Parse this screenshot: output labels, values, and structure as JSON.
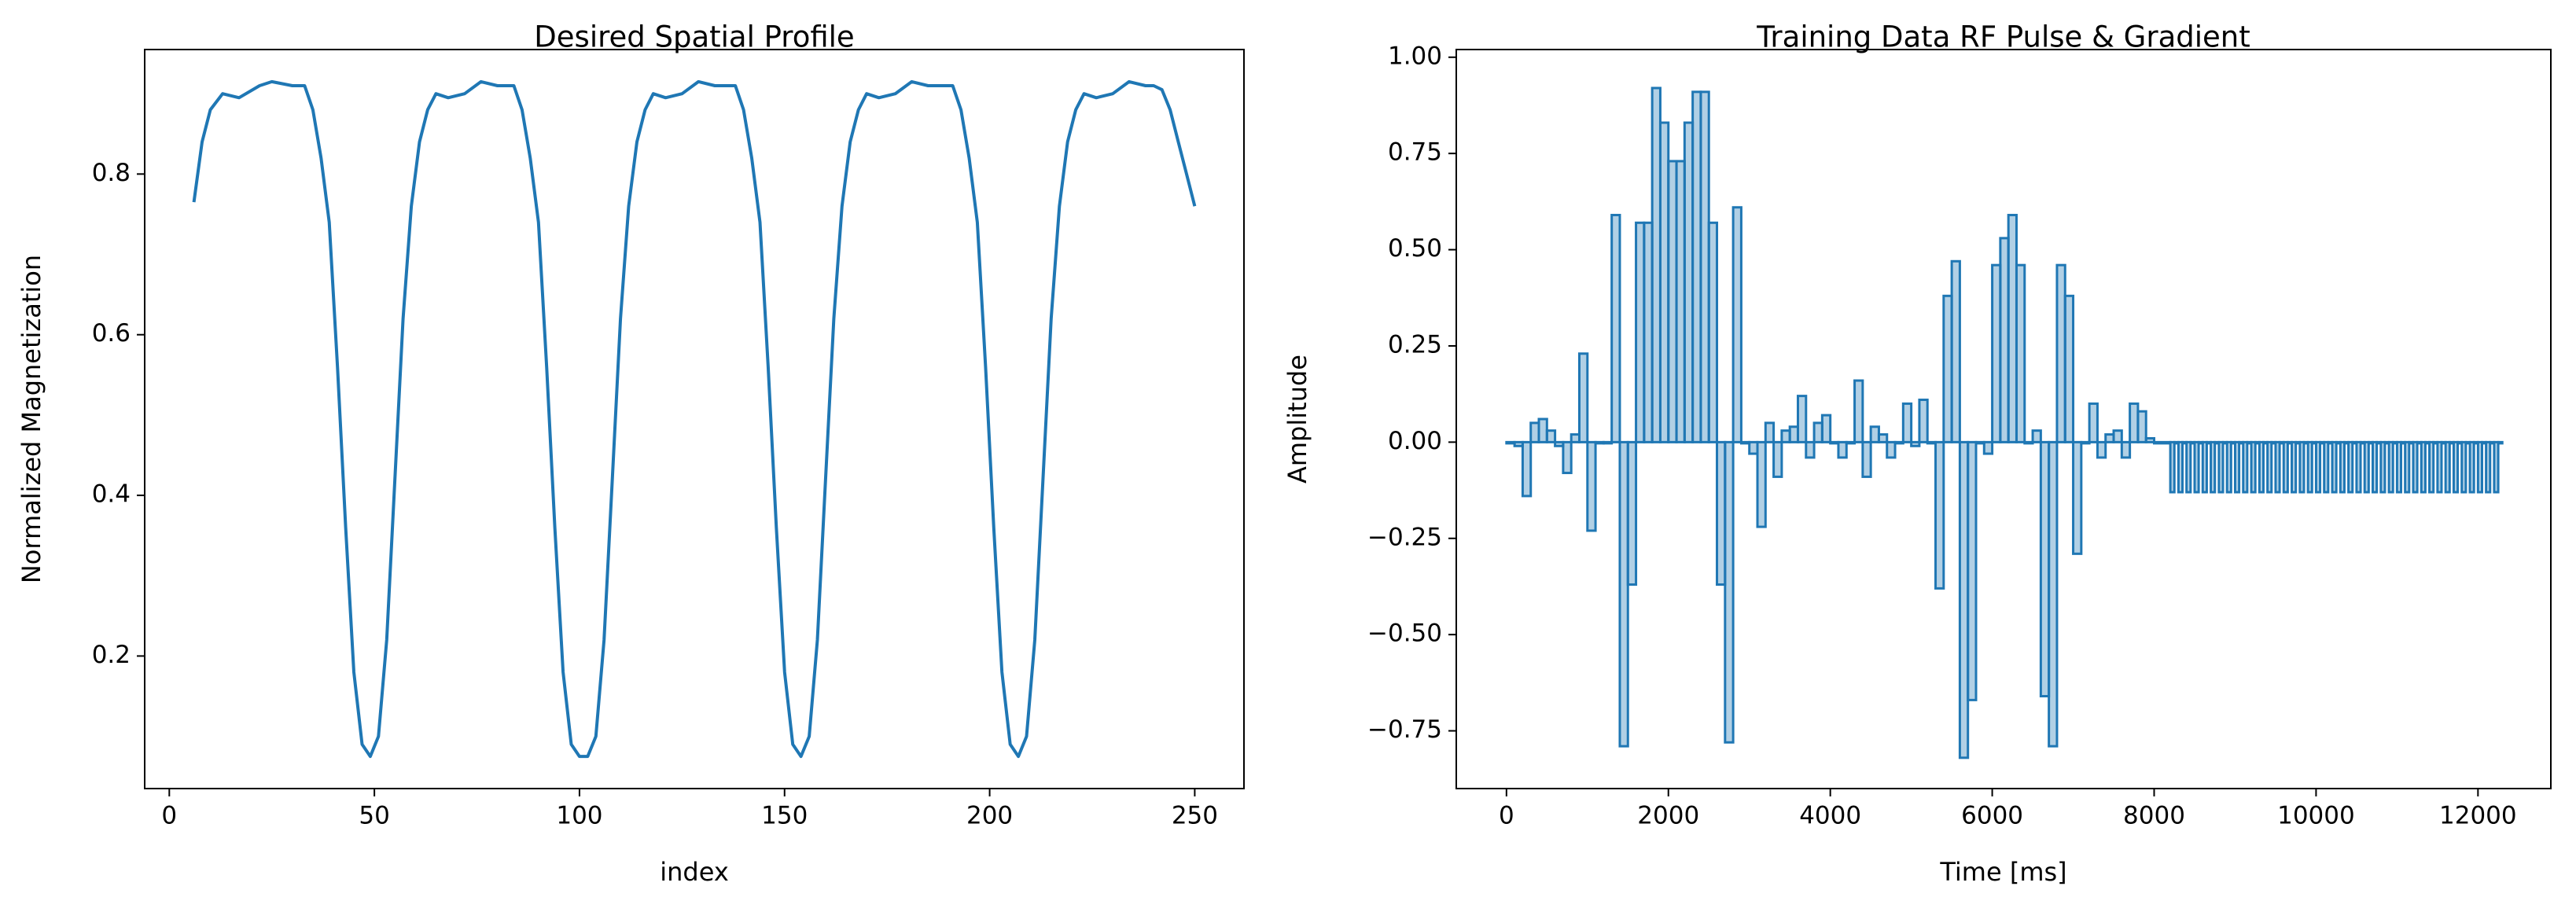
{
  "chart_data": [
    {
      "type": "line",
      "title": "Desired Spatial Profile",
      "xlabel": "index",
      "ylabel": "Normalized Magnetization",
      "color": "#1f77b4",
      "x": [
        6,
        8,
        10,
        13,
        17,
        22,
        25,
        30,
        33,
        35,
        37,
        39,
        41,
        43,
        45,
        47,
        49,
        51,
        53,
        55,
        57,
        59,
        61,
        63,
        65,
        68,
        72,
        76,
        80,
        84,
        86,
        88,
        90,
        92,
        94,
        96,
        98,
        100,
        102,
        104,
        106,
        108,
        110,
        112,
        114,
        116,
        118,
        121,
        125,
        129,
        133,
        138,
        140,
        142,
        144,
        146,
        148,
        150,
        152,
        154,
        156,
        158,
        160,
        162,
        164,
        166,
        168,
        170,
        173,
        177,
        181,
        185,
        191,
        193,
        195,
        197,
        199,
        201,
        203,
        205,
        207,
        209,
        211,
        213,
        215,
        217,
        219,
        221,
        223,
        226,
        230,
        234,
        238,
        240,
        242,
        244,
        246,
        248,
        250
      ],
      "values": [
        0.765,
        0.84,
        0.88,
        0.9,
        0.895,
        0.91,
        0.915,
        0.91,
        0.91,
        0.88,
        0.82,
        0.74,
        0.56,
        0.36,
        0.18,
        0.09,
        0.075,
        0.1,
        0.22,
        0.42,
        0.62,
        0.76,
        0.84,
        0.88,
        0.9,
        0.895,
        0.9,
        0.915,
        0.91,
        0.91,
        0.88,
        0.82,
        0.74,
        0.56,
        0.36,
        0.18,
        0.09,
        0.075,
        0.075,
        0.1,
        0.22,
        0.42,
        0.62,
        0.76,
        0.84,
        0.88,
        0.9,
        0.895,
        0.9,
        0.915,
        0.91,
        0.91,
        0.88,
        0.82,
        0.74,
        0.56,
        0.36,
        0.18,
        0.09,
        0.075,
        0.1,
        0.22,
        0.42,
        0.62,
        0.76,
        0.84,
        0.88,
        0.9,
        0.895,
        0.9,
        0.915,
        0.91,
        0.91,
        0.88,
        0.82,
        0.74,
        0.56,
        0.36,
        0.18,
        0.09,
        0.075,
        0.1,
        0.22,
        0.42,
        0.62,
        0.76,
        0.84,
        0.88,
        0.9,
        0.895,
        0.9,
        0.915,
        0.91,
        0.91,
        0.905,
        0.88,
        0.84,
        0.8,
        0.76
      ],
      "xlim": [
        -6,
        262
      ],
      "ylim": [
        0.035,
        0.955
      ],
      "xticks": [
        0,
        50,
        100,
        150,
        200,
        250
      ],
      "yticks": [
        0.2,
        0.4,
        0.6,
        0.8
      ]
    },
    {
      "type": "step",
      "title": "Training Data RF Pulse & Gradient",
      "xlabel": "Time [ms]",
      "ylabel": "Amplitude",
      "color": "#1f77b4",
      "x": [
        0,
        100,
        200,
        300,
        400,
        500,
        600,
        700,
        800,
        900,
        1000,
        1100,
        1200,
        1300,
        1400,
        1500,
        1600,
        1700,
        1800,
        1900,
        2000,
        2100,
        2200,
        2300,
        2400,
        2500,
        2600,
        2700,
        2800,
        2900,
        3000,
        3100,
        3200,
        3300,
        3400,
        3500,
        3600,
        3700,
        3800,
        3900,
        4000,
        4100,
        4200,
        4300,
        4400,
        4500,
        4600,
        4700,
        4800,
        4900,
        5000,
        5100,
        5200,
        5300,
        5400,
        5500,
        5600,
        5700,
        5800,
        5900,
        6000,
        6100,
        6200,
        6300,
        6400,
        6500,
        6600,
        6700,
        6800,
        6900,
        7000,
        7100,
        7200,
        7300,
        7400,
        7500,
        7600,
        7700,
        7800,
        7900,
        8000,
        8200,
        8250,
        8300,
        8350,
        8400,
        8450,
        8500,
        8550,
        8600,
        8650,
        8700,
        8750,
        8800,
        8850,
        8900,
        8950,
        9000,
        9050,
        9100,
        9150,
        9200,
        9250,
        9300,
        9350,
        9400,
        9450,
        9500,
        9550,
        9600,
        9650,
        9700,
        9750,
        9800,
        9850,
        9900,
        9950,
        10000,
        10050,
        10100,
        10150,
        10200,
        10250,
        10300,
        10350,
        10400,
        10450,
        10500,
        10550,
        10600,
        10650,
        10700,
        10750,
        10800,
        10850,
        10900,
        10950,
        11000,
        11050,
        11100,
        11150,
        11200,
        11250,
        11300,
        11350,
        11400,
        11450,
        11500,
        11550,
        11600,
        11650,
        11700,
        11750,
        11800,
        11850,
        11900,
        11950,
        12000,
        12050,
        12100,
        12150,
        12200,
        12250
      ],
      "values": [
        0.0,
        -0.01,
        -0.14,
        0.05,
        0.06,
        0.03,
        -0.01,
        -0.08,
        0.02,
        0.23,
        -0.23,
        0.0,
        0.0,
        0.59,
        -0.79,
        -0.37,
        0.57,
        0.57,
        0.92,
        0.83,
        0.73,
        0.73,
        0.83,
        0.91,
        0.91,
        0.57,
        -0.37,
        -0.78,
        0.61,
        0.0,
        -0.03,
        -0.22,
        0.05,
        -0.09,
        0.03,
        0.04,
        0.12,
        -0.04,
        0.05,
        0.07,
        0.0,
        -0.04,
        0.0,
        0.16,
        -0.09,
        0.04,
        0.02,
        -0.04,
        0.0,
        0.1,
        -0.01,
        0.11,
        0.0,
        -0.38,
        0.38,
        0.47,
        -0.82,
        -0.67,
        0.0,
        -0.03,
        0.46,
        0.53,
        0.59,
        0.46,
        0.0,
        0.03,
        -0.66,
        -0.79,
        0.46,
        0.38,
        -0.29,
        0.0,
        0.1,
        -0.04,
        0.02,
        0.03,
        -0.04,
        0.1,
        0.08,
        0.01,
        0.0,
        -0.13,
        0.0,
        -0.13,
        0.0,
        -0.13,
        0.0,
        -0.13,
        0.0,
        -0.13,
        0.0,
        -0.13,
        0.0,
        -0.13,
        0.0,
        -0.13,
        0.0,
        -0.13,
        0.0,
        -0.13,
        0.0,
        -0.13,
        0.0,
        -0.13,
        0.0,
        -0.13,
        0.0,
        -0.13,
        0.0,
        -0.13,
        0.0,
        -0.13,
        0.0,
        -0.13,
        0.0,
        -0.13,
        0.0,
        -0.13,
        0.0,
        -0.13,
        0.0,
        -0.13,
        0.0,
        -0.13,
        0.0,
        -0.13,
        0.0,
        -0.13,
        0.0,
        -0.13,
        0.0,
        -0.13,
        0.0,
        -0.13,
        0.0,
        -0.13,
        0.0,
        -0.13,
        0.0,
        -0.13,
        0.0,
        -0.13,
        0.0,
        -0.13,
        0.0,
        -0.13,
        0.0,
        -0.13,
        0.0,
        -0.13,
        0.0,
        -0.13,
        0.0,
        -0.13,
        0.0,
        -0.13,
        0.0,
        -0.13,
        0.0,
        -0.13,
        0.0,
        -0.13,
        0.0
      ],
      "xlim": [
        -620,
        12900
      ],
      "ylim": [
        -0.9,
        1.02
      ],
      "xticks": [
        0,
        2000,
        4000,
        6000,
        8000,
        10000,
        12000
      ],
      "yticks": [
        {
          "value": -0.75,
          "label": "−0.75"
        },
        {
          "value": -0.5,
          "label": "−0.50"
        },
        {
          "value": -0.25,
          "label": "−0.25"
        },
        {
          "value": 0,
          "label": "0.00"
        },
        {
          "value": 0.25,
          "label": "0.25"
        },
        {
          "value": 0.5,
          "label": "0.50"
        },
        {
          "value": 0.75,
          "label": "0.75"
        },
        {
          "value": 1,
          "label": "1.00"
        }
      ]
    }
  ]
}
